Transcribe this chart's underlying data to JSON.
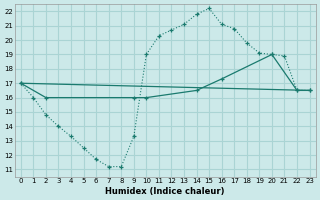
{
  "xlabel": "Humidex (Indice chaleur)",
  "bg_color": "#cce9e9",
  "grid_color": "#aad4d4",
  "line_color": "#1a7a6e",
  "xlim": [
    -0.5,
    23.5
  ],
  "ylim": [
    10.5,
    22.5
  ],
  "xticks": [
    0,
    1,
    2,
    3,
    4,
    5,
    6,
    7,
    8,
    9,
    10,
    11,
    12,
    13,
    14,
    15,
    16,
    17,
    18,
    19,
    20,
    21,
    22,
    23
  ],
  "yticks": [
    11,
    12,
    13,
    14,
    15,
    16,
    17,
    18,
    19,
    20,
    21,
    22
  ],
  "series1_x": [
    0,
    1,
    2,
    3,
    4,
    5,
    6,
    7,
    8,
    9,
    10,
    11,
    12,
    13,
    14,
    15,
    16,
    17,
    18,
    19,
    20,
    21,
    22,
    23
  ],
  "series1_y": [
    17.0,
    16.0,
    14.8,
    14.0,
    13.3,
    12.5,
    11.7,
    11.2,
    11.2,
    13.3,
    19.0,
    20.3,
    20.7,
    21.1,
    21.8,
    22.2,
    21.1,
    20.8,
    19.8,
    19.1,
    19.0,
    18.9,
    16.5,
    16.5
  ],
  "series2_x": [
    0,
    2,
    9,
    10,
    14,
    16,
    20,
    22,
    23
  ],
  "series2_y": [
    17.0,
    16.0,
    16.0,
    16.0,
    16.5,
    17.3,
    19.0,
    16.5,
    16.5
  ],
  "series3_x": [
    0,
    23
  ],
  "series3_y": [
    17.0,
    16.5
  ]
}
